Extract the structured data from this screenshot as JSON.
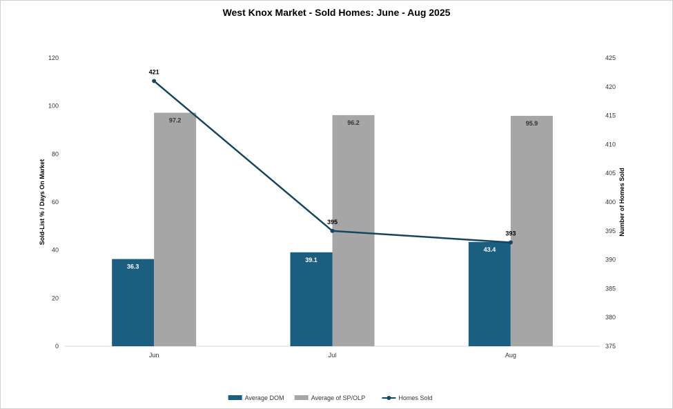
{
  "chart_data": {
    "type": "bar",
    "title": "West Knox Market - Sold Homes: June - Aug 2025",
    "categories": [
      "Jun",
      "Jul",
      "Aug"
    ],
    "ylabel_left": "Sold-List % / Days On Market",
    "ylabel_right": "Number of Homes Sold",
    "ylim_left": [
      0,
      120
    ],
    "yticks_left": [
      "0",
      "20",
      "40",
      "60",
      "80",
      "100",
      "120"
    ],
    "ylim_right": [
      375,
      425
    ],
    "yticks_right": [
      "375",
      "380",
      "385",
      "390",
      "395",
      "400",
      "405",
      "410",
      "415",
      "420",
      "425"
    ],
    "grid": false,
    "legend_position": "bottom",
    "series": [
      {
        "name": "Average DOM",
        "type": "bar",
        "axis": "left",
        "color": "#1b5e80",
        "label_color": "#ffffff",
        "values": [
          36.3,
          39.1,
          43.4
        ],
        "labels": [
          "36.3",
          "39.1",
          "43.4"
        ]
      },
      {
        "name": "Average of SP/OLP",
        "type": "bar",
        "axis": "left",
        "color": "#a6a6a6",
        "label_color": "#333333",
        "values": [
          97.2,
          96.2,
          95.9
        ],
        "labels": [
          "97.2",
          "96.2",
          "95.9"
        ]
      },
      {
        "name": "Homes Sold",
        "type": "line",
        "axis": "right",
        "color": "#15465f",
        "values": [
          421,
          395,
          393
        ],
        "labels": [
          "421",
          "395",
          "393"
        ]
      }
    ]
  }
}
